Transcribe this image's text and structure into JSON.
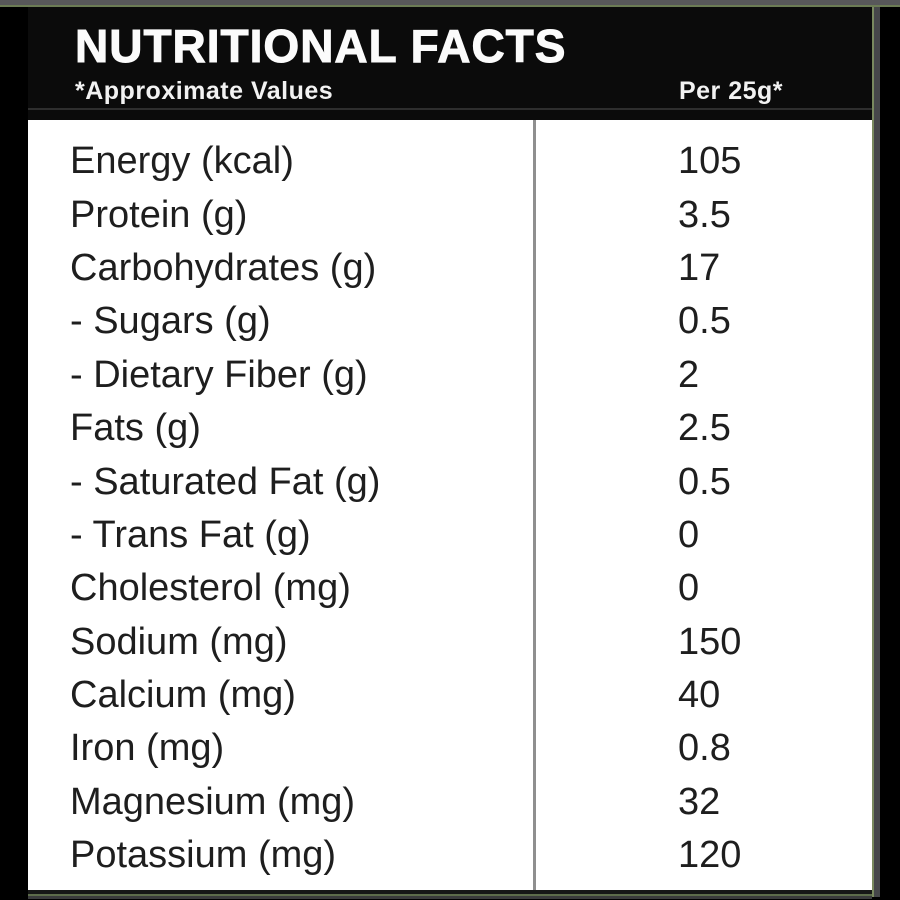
{
  "label": {
    "title": "NUTRITIONAL FACTS",
    "approx_note": "*Approximate Values",
    "serving_note": "Per 25g*",
    "rows": [
      {
        "name": "Energy (kcal)",
        "value": "105"
      },
      {
        "name": "Protein (g)",
        "value": "3.5"
      },
      {
        "name": "Carbohydrates (g)",
        "value": "17"
      },
      {
        "name": "- Sugars (g)",
        "value": "0.5"
      },
      {
        "name": "- Dietary Fiber (g)",
        "value": "2"
      },
      {
        "name": "Fats (g)",
        "value": "2.5"
      },
      {
        "name": "- Saturated Fat (g)",
        "value": "0.5"
      },
      {
        "name": "- Trans Fat (g)",
        "value": "0"
      },
      {
        "name": "Cholesterol (mg)",
        "value": "0"
      },
      {
        "name": "Sodium (mg)",
        "value": "150"
      },
      {
        "name": "Calcium (mg)",
        "value": "40"
      },
      {
        "name": "Iron (mg)",
        "value": "0.8"
      },
      {
        "name": "Magnesium (mg)",
        "value": "32"
      },
      {
        "name": "Potassium (mg)",
        "value": "120"
      }
    ]
  },
  "colors": {
    "header_bg": "#0b0b0b",
    "sheet_bg": "#ffffff",
    "top_strip_gray": "#58585a",
    "edge_olive": "#79895f",
    "edge_gray": "#46474a",
    "column_divider": "#8f8f8f",
    "row_text": "#1e1e1e",
    "header_text": "#fbfbfb"
  }
}
